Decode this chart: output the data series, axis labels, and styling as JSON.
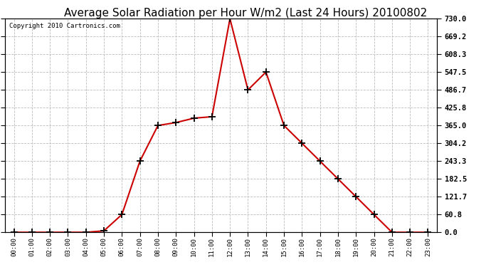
{
  "title": "Average Solar Radiation per Hour W/m2 (Last 24 Hours) 20100802",
  "copyright": "Copyright 2010 Cartronics.com",
  "x_labels": [
    "00:00",
    "01:00",
    "02:00",
    "03:00",
    "04:00",
    "05:00",
    "06:00",
    "07:00",
    "08:00",
    "09:00",
    "10:00",
    "11:00",
    "12:00",
    "13:00",
    "14:00",
    "15:00",
    "16:00",
    "17:00",
    "18:00",
    "19:00",
    "20:00",
    "21:00",
    "22:00",
    "23:00"
  ],
  "y_values": [
    0.0,
    0.0,
    0.0,
    0.0,
    0.0,
    5.0,
    60.8,
    243.3,
    365.0,
    375.0,
    390.0,
    395.0,
    730.0,
    486.7,
    547.5,
    365.0,
    304.2,
    243.3,
    182.5,
    121.7,
    60.8,
    0.0,
    0.0,
    0.0
  ],
  "line_color": "#cc0000",
  "marker": "+",
  "marker_color": "#000000",
  "background_color": "#ffffff",
  "grid_color": "#bbbbbb",
  "y_max": 730.0,
  "y_min": 0.0,
  "y_ticks": [
    0.0,
    60.8,
    121.7,
    182.5,
    243.3,
    304.2,
    365.0,
    425.8,
    486.7,
    547.5,
    608.3,
    669.2,
    730.0
  ],
  "title_fontsize": 11,
  "copyright_fontsize": 6.5,
  "tick_label_fontsize": 7.5
}
